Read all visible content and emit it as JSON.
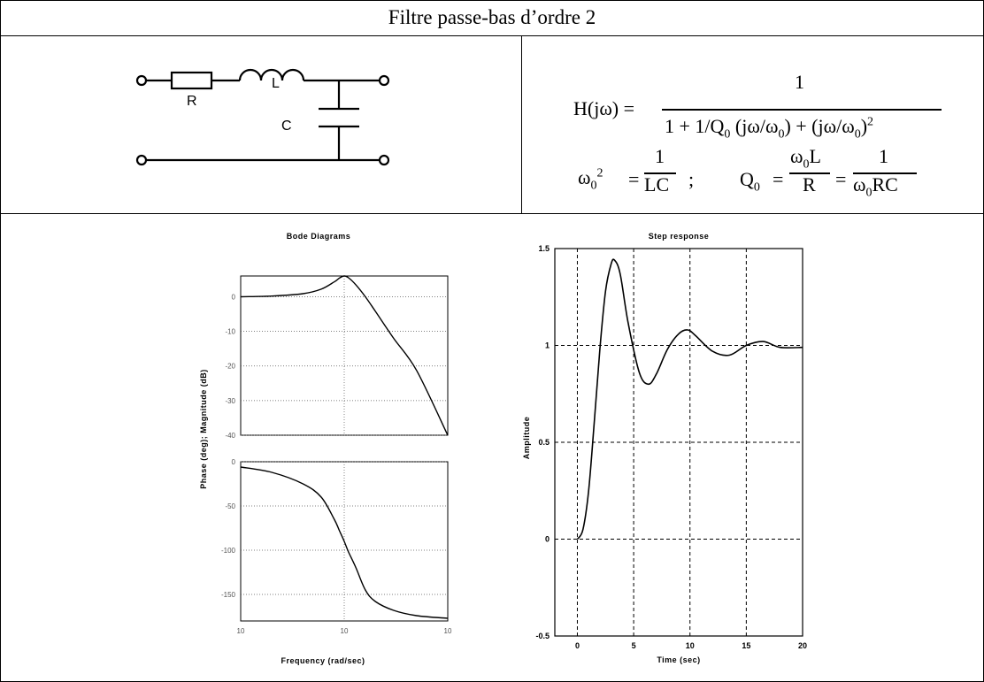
{
  "title": "Filtre passe-bas d’ordre 2",
  "circuit": {
    "r_label": "R",
    "l_label": "L",
    "c_label": "C"
  },
  "formula": {
    "h_lhs": "H(jω) =",
    "h_num": "1",
    "h_den_a": "1 + 1/Q",
    "h_den_sub0": "0",
    "h_den_b": " (jω/ω",
    "h_den_sub1": "0",
    "h_den_c": ") + (jω/ω",
    "h_den_sub2": "0",
    "h_den_d": ")",
    "h_den_sup": "2",
    "w0_lhs": "ω",
    "w0_sub": "0",
    "w0_sup": "2",
    "eq": "=",
    "w0_num": "1",
    "w0_den": "LC",
    "sep": ";",
    "q_lhs": "Q",
    "q_sub": "0",
    "q_num_a": "ω",
    "q_num_sub": "0",
    "q_num_b": "L",
    "q_den": "R",
    "q_num2": "1",
    "q_den2_a": "ω",
    "q_den2_sub": "0",
    "q_den2_b": "RC"
  },
  "bode": {
    "title": "Bode Diagrams",
    "ylabel": "Phase (deg); Magnitude (dB)",
    "xlabel": "Frequency (rad/sec)",
    "mag_ticks": [
      "0",
      "-10",
      "-20",
      "-30",
      "-40"
    ],
    "phase_ticks": [
      "0",
      "-50",
      "-100",
      "-150"
    ],
    "x_ticks": [
      "10",
      "10",
      "10"
    ]
  },
  "chart_data": [
    {
      "type": "line",
      "title": "Bode Diagrams",
      "panel": "magnitude",
      "xscale": "log",
      "x": [
        0.1,
        0.2,
        0.4,
        0.6,
        0.8,
        0.9,
        1.0,
        1.1,
        1.3,
        1.6,
        2,
        3,
        5,
        10
      ],
      "y": [
        0.0,
        0.2,
        0.9,
        2.2,
        4.3,
        5.4,
        6.0,
        5.5,
        3.4,
        0.0,
        -4.2,
        -12.0,
        -21.3,
        -40.0
      ],
      "ylim": [
        -40,
        6
      ]
    },
    {
      "type": "line",
      "title": "Bode Diagrams",
      "panel": "phase",
      "xlabel": "Frequency (rad/sec)",
      "ylabel": "Phase (deg); Magnitude (dB)",
      "xscale": "log",
      "x": [
        0.1,
        0.2,
        0.4,
        0.6,
        0.8,
        0.9,
        1.0,
        1.1,
        1.3,
        1.6,
        2,
        3,
        5,
        10
      ],
      "y": [
        -6,
        -12,
        -25,
        -40,
        -65,
        -78,
        -90,
        -102,
        -120,
        -145,
        -158,
        -168,
        -174,
        -177
      ],
      "ylim": [
        -180,
        0
      ]
    },
    {
      "type": "line",
      "title": "Step response",
      "xlabel": "Time (sec)",
      "ylabel": "Amplitude",
      "x": [
        0,
        0.5,
        1,
        1.5,
        2,
        2.5,
        3,
        3.3,
        3.8,
        4.5,
        5.5,
        6.3,
        7,
        8,
        9,
        9.8,
        10.5,
        12,
        13.5,
        15,
        16.5,
        18,
        20
      ],
      "y": [
        0,
        0.05,
        0.25,
        0.6,
        0.98,
        1.28,
        1.42,
        1.44,
        1.37,
        1.12,
        0.86,
        0.8,
        0.85,
        0.98,
        1.06,
        1.08,
        1.05,
        0.97,
        0.95,
        1.0,
        1.02,
        0.99,
        0.99
      ],
      "xlim": [
        -2,
        20
      ],
      "ylim": [
        -0.5,
        1.5
      ],
      "x_ticks": [
        "0",
        "5",
        "10",
        "15",
        "20"
      ],
      "y_ticks": [
        "-0.5",
        "0",
        "0.5",
        "1",
        "1.5"
      ],
      "grid": true
    }
  ]
}
